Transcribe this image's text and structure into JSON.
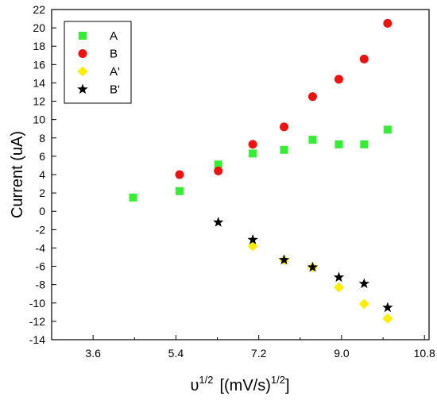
{
  "chart_data": {
    "type": "scatter",
    "xlabel": {
      "base": "υ",
      "base_sup": "1/2",
      "unit": "[(mV/s)",
      "unit_sup": "1/2",
      "unit_close": "]"
    },
    "ylabel": "Current (uA)",
    "xlim": [
      2.7,
      10.9
    ],
    "ylim": [
      -14,
      22
    ],
    "x_ticks": [
      "3.6",
      "5.4",
      "7.2",
      "9.0",
      "10.8"
    ],
    "x_tick_values": [
      3.6,
      5.4,
      7.2,
      9.0,
      10.8
    ],
    "y_ticks": [
      "-14",
      "-12",
      "-10",
      "-8",
      "-6",
      "-4",
      "-2",
      "0",
      "2",
      "4",
      "6",
      "8",
      "10",
      "12",
      "14",
      "16",
      "18",
      "20",
      "22"
    ],
    "y_tick_values": [
      -14,
      -12,
      -10,
      -8,
      -6,
      -4,
      -2,
      0,
      2,
      4,
      6,
      8,
      10,
      12,
      14,
      16,
      18,
      20,
      22
    ],
    "legend_position": "top-left",
    "series": [
      {
        "name": "A",
        "marker": "square",
        "color": "#33ee33",
        "x": [
          4.47,
          5.48,
          6.32,
          7.07,
          7.75,
          8.37,
          8.94,
          9.49,
          10.0
        ],
        "y": [
          1.5,
          2.2,
          5.1,
          6.3,
          6.7,
          7.8,
          7.3,
          7.3,
          8.9
        ]
      },
      {
        "name": "B",
        "marker": "circle",
        "color": "#ee1111",
        "x": [
          5.48,
          6.32,
          7.07,
          7.75,
          8.37,
          8.94,
          9.49,
          10.0
        ],
        "y": [
          4.0,
          4.4,
          7.3,
          9.2,
          12.5,
          14.4,
          16.6,
          20.5
        ]
      },
      {
        "name": "A'",
        "marker": "diamond",
        "color": "#ffee00",
        "x": [
          7.07,
          7.75,
          8.37,
          8.94,
          9.49,
          10.0
        ],
        "y": [
          -3.8,
          -5.3,
          -6.1,
          -8.3,
          -10.1,
          -11.7
        ]
      },
      {
        "name": "B'",
        "marker": "star",
        "color": "#000000",
        "x": [
          6.32,
          7.07,
          7.75,
          8.37,
          8.94,
          9.49,
          10.0
        ],
        "y": [
          -1.2,
          -3.1,
          -5.3,
          -6.1,
          -7.2,
          -7.9,
          -10.5
        ]
      }
    ]
  }
}
